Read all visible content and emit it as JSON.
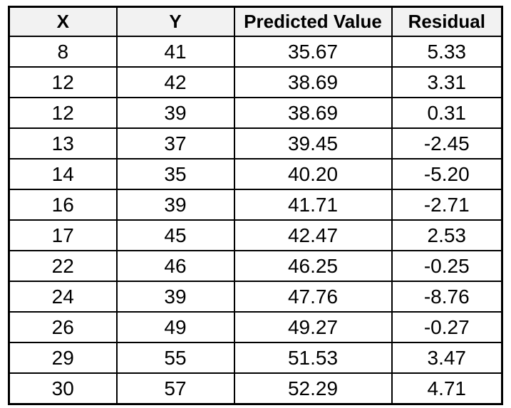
{
  "table": {
    "headers": [
      "X",
      "Y",
      "Predicted Value",
      "Residual"
    ],
    "rows": [
      [
        "8",
        "41",
        "35.67",
        "5.33"
      ],
      [
        "12",
        "42",
        "38.69",
        "3.31"
      ],
      [
        "12",
        "39",
        "38.69",
        "0.31"
      ],
      [
        "13",
        "37",
        "39.45",
        "-2.45"
      ],
      [
        "14",
        "35",
        "40.20",
        "-5.20"
      ],
      [
        "16",
        "39",
        "41.71",
        "-2.71"
      ],
      [
        "17",
        "45",
        "42.47",
        "2.53"
      ],
      [
        "22",
        "46",
        "46.25",
        "-0.25"
      ],
      [
        "24",
        "39",
        "47.76",
        "-8.76"
      ],
      [
        "26",
        "49",
        "49.27",
        "-0.27"
      ],
      [
        "29",
        "55",
        "51.53",
        "3.47"
      ],
      [
        "30",
        "57",
        "52.29",
        "4.71"
      ]
    ]
  },
  "chart_data": {
    "type": "table",
    "title": "",
    "columns": [
      "X",
      "Y",
      "Predicted Value",
      "Residual"
    ],
    "rows": [
      [
        8,
        41,
        35.67,
        5.33
      ],
      [
        12,
        42,
        38.69,
        3.31
      ],
      [
        12,
        39,
        38.69,
        0.31
      ],
      [
        13,
        37,
        39.45,
        -2.45
      ],
      [
        14,
        35,
        40.2,
        -5.2
      ],
      [
        16,
        39,
        41.71,
        -2.71
      ],
      [
        17,
        45,
        42.47,
        2.53
      ],
      [
        22,
        46,
        46.25,
        -0.25
      ],
      [
        24,
        39,
        47.76,
        -8.76
      ],
      [
        26,
        49,
        49.27,
        -0.27
      ],
      [
        29,
        55,
        51.53,
        3.47
      ],
      [
        30,
        57,
        52.29,
        4.71
      ]
    ]
  },
  "colors": {
    "header_background": "#f2f2f2",
    "border": "#000000",
    "text": "#000000",
    "page_background": "#ffffff"
  }
}
